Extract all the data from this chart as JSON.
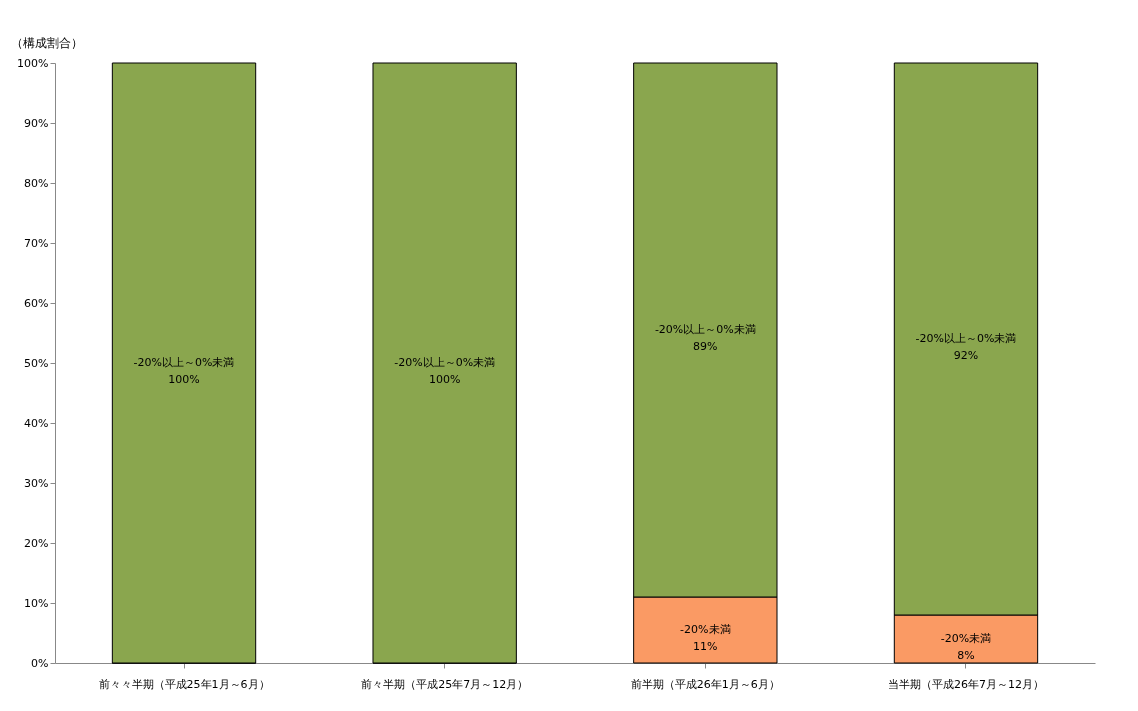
{
  "chart_data": {
    "type": "bar",
    "stacked": true,
    "ylabel": "（構成割合）",
    "categories": [
      "前々々半期（平成25年1月～6月）",
      "前々半期（平成25年7月～12月）",
      "前半期（平成26年1月～6月）",
      "当半期（平成26年7月～12月）"
    ],
    "series": [
      {
        "name": "-20%未満",
        "color": "#fa9a64",
        "values": [
          0,
          0,
          11,
          8
        ],
        "value_labels": [
          null,
          null,
          "11%",
          "8%"
        ]
      },
      {
        "name": "-20%以上～0%未満",
        "color": "#8aa64e",
        "values": [
          100,
          100,
          89,
          92
        ],
        "value_labels": [
          "100%",
          "100%",
          "89%",
          "92%"
        ]
      }
    ],
    "ylim": [
      0,
      100
    ],
    "yticks": [
      {
        "value": 0,
        "label": "0%"
      },
      {
        "value": 10,
        "label": "10%"
      },
      {
        "value": 20,
        "label": "20%"
      },
      {
        "value": 30,
        "label": "30%"
      },
      {
        "value": 40,
        "label": "40%"
      },
      {
        "value": 50,
        "label": "50%"
      },
      {
        "value": 60,
        "label": "60%"
      },
      {
        "value": 70,
        "label": "70%"
      },
      {
        "value": 80,
        "label": "80%"
      },
      {
        "value": 90,
        "label": "90%"
      },
      {
        "value": 100,
        "label": "100%"
      }
    ],
    "grid": false,
    "legend": false
  }
}
